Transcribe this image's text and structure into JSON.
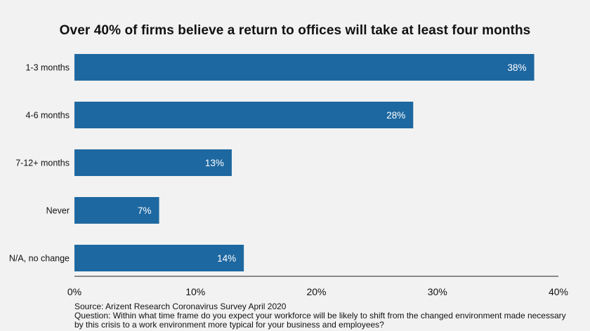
{
  "title": "Over 40% of firms believe a return to offices will take at least four months",
  "source": "Source: Arizent Research Coronavirus Survey April 2020",
  "question": "Question: Within what time frame do you expect your workforce will be likely to shift from the changed environment made necessary by this crisis to a work environment more typical for your business and employees?",
  "colors": {
    "bar": "#1e68a1",
    "background": "#f1f2f1",
    "value_label": "#ffffff"
  },
  "chart_data": {
    "type": "bar",
    "orientation": "horizontal",
    "categories": [
      "1-3 months",
      "4-6 months",
      "7-12+ months",
      "Never",
      "N/A, no change"
    ],
    "values": [
      38,
      28,
      13,
      7,
      14
    ],
    "value_labels": [
      "38%",
      "28%",
      "13%",
      "7%",
      "14%"
    ],
    "xlim": [
      0,
      40
    ],
    "xticks": [
      0,
      10,
      20,
      30,
      40
    ],
    "xtick_labels": [
      "0%",
      "10%",
      "20%",
      "30%",
      "40%"
    ],
    "grid": false,
    "legend": "none"
  }
}
